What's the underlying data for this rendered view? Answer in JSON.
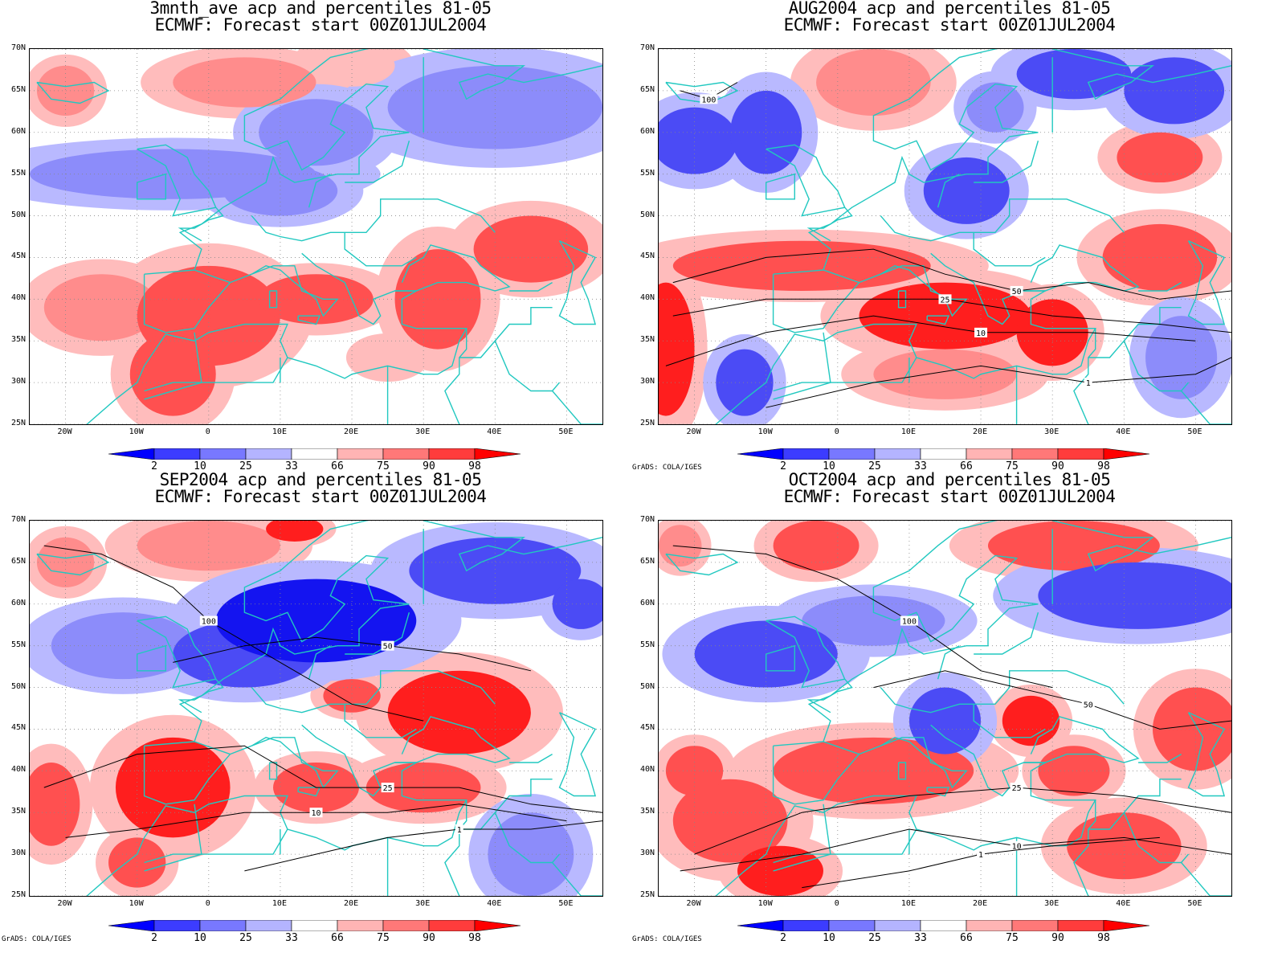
{
  "panels": [
    {
      "title1": "3mnth_ave acp and percentiles 81-05",
      "title2": "ECMWF: Forecast start 00Z01JUL2004",
      "credit": "",
      "blobs": [
        {
          "lon": -20,
          "lat": 65,
          "rx": 4,
          "ry": 3,
          "level": 75
        },
        {
          "lon": 5,
          "lat": 66,
          "rx": 10,
          "ry": 3,
          "level": 75
        },
        {
          "lon": 20,
          "lat": 68,
          "rx": 6,
          "ry": 2.5,
          "level": 66
        },
        {
          "lon": 40,
          "lat": 63,
          "rx": 15,
          "ry": 5,
          "level": 25
        },
        {
          "lon": 15,
          "lat": 60,
          "rx": 8,
          "ry": 4,
          "level": 25
        },
        {
          "lon": -5,
          "lat": 55,
          "rx": 20,
          "ry": 3,
          "level": 25
        },
        {
          "lon": 10,
          "lat": 53,
          "rx": 8,
          "ry": 3,
          "level": 25
        },
        {
          "lon": -15,
          "lat": 39,
          "rx": 8,
          "ry": 4,
          "level": 75
        },
        {
          "lon": 0,
          "lat": 38,
          "rx": 10,
          "ry": 6,
          "level": 90
        },
        {
          "lon": -5,
          "lat": 31,
          "rx": 6,
          "ry": 5,
          "level": 90
        },
        {
          "lon": 15,
          "lat": 40,
          "rx": 8,
          "ry": 3,
          "level": 90
        },
        {
          "lon": 32,
          "lat": 40,
          "rx": 6,
          "ry": 6,
          "level": 90
        },
        {
          "lon": 45,
          "lat": 46,
          "rx": 8,
          "ry": 4,
          "level": 90
        },
        {
          "lon": 25,
          "lat": 33,
          "rx": 4,
          "ry": 2,
          "level": 66
        }
      ],
      "contours": []
    },
    {
      "title1": "AUG2004 acp and percentiles 81-05",
      "title2": "ECMWF: Forecast start 00Z01JUL2004",
      "credit": "GrADS: COLA/IGES",
      "blobs": [
        {
          "lon": -20,
          "lat": 59,
          "rx": 6,
          "ry": 4,
          "level": 10
        },
        {
          "lon": -10,
          "lat": 60,
          "rx": 5,
          "ry": 5,
          "level": 10
        },
        {
          "lon": 33,
          "lat": 67,
          "rx": 8,
          "ry": 3,
          "level": 10
        },
        {
          "lon": 47,
          "lat": 65,
          "rx": 7,
          "ry": 4,
          "level": 10
        },
        {
          "lon": 22,
          "lat": 63,
          "rx": 4,
          "ry": 3,
          "level": 25
        },
        {
          "lon": 18,
          "lat": 53,
          "rx": 6,
          "ry": 4,
          "level": 10
        },
        {
          "lon": 5,
          "lat": 66,
          "rx": 8,
          "ry": 4,
          "level": 75
        },
        {
          "lon": 45,
          "lat": 57,
          "rx": 6,
          "ry": 3,
          "level": 90
        },
        {
          "lon": -5,
          "lat": 44,
          "rx": 18,
          "ry": 3,
          "level": 90
        },
        {
          "lon": 15,
          "lat": 38,
          "rx": 12,
          "ry": 4,
          "level": 98
        },
        {
          "lon": -24,
          "lat": 34,
          "rx": 4,
          "ry": 8,
          "level": 98
        },
        {
          "lon": 30,
          "lat": 36,
          "rx": 5,
          "ry": 4,
          "level": 98
        },
        {
          "lon": 15,
          "lat": 31,
          "rx": 10,
          "ry": 3,
          "level": 75
        },
        {
          "lon": -13,
          "lat": 30,
          "rx": 4,
          "ry": 4,
          "level": 10
        },
        {
          "lon": 48,
          "lat": 33,
          "rx": 5,
          "ry": 5,
          "level": 25
        },
        {
          "lon": 45,
          "lat": 45,
          "rx": 8,
          "ry": 4,
          "level": 90
        }
      ],
      "contours": [
        {
          "label": "100",
          "points": [
            [
              -22,
              65
            ],
            [
              -18,
              64
            ],
            [
              -14,
              66
            ]
          ]
        },
        {
          "label": "50",
          "points": [
            [
              -23,
              42
            ],
            [
              -10,
              45
            ],
            [
              5,
              46
            ],
            [
              15,
              43
            ],
            [
              25,
              41
            ],
            [
              35,
              42
            ],
            [
              45,
              40
            ],
            [
              55,
              41
            ]
          ]
        },
        {
          "label": "25",
          "points": [
            [
              -23,
              38
            ],
            [
              -10,
              40
            ],
            [
              5,
              40
            ],
            [
              15,
              40
            ],
            [
              30,
              38
            ],
            [
              45,
              37
            ],
            [
              55,
              36
            ]
          ]
        },
        {
          "label": "10",
          "points": [
            [
              -24,
              32
            ],
            [
              -10,
              36
            ],
            [
              5,
              38
            ],
            [
              20,
              36
            ],
            [
              35,
              36
            ],
            [
              50,
              35
            ]
          ]
        },
        {
          "label": "1",
          "points": [
            [
              -10,
              27
            ],
            [
              5,
              30
            ],
            [
              20,
              32
            ],
            [
              35,
              30
            ],
            [
              50,
              31
            ],
            [
              55,
              33
            ]
          ]
        }
      ]
    },
    {
      "title1": "SEP2004 acp and percentiles 81-05",
      "title2": "ECMWF: Forecast start 00Z01JUL2004",
      "credit": "GrADS: COLA/IGES",
      "blobs": [
        {
          "lon": 0,
          "lat": 67,
          "rx": 10,
          "ry": 3,
          "level": 75
        },
        {
          "lon": 12,
          "lat": 69,
          "rx": 4,
          "ry": 1.5,
          "level": 98
        },
        {
          "lon": -20,
          "lat": 65,
          "rx": 4,
          "ry": 3,
          "level": 75
        },
        {
          "lon": 15,
          "lat": 58,
          "rx": 14,
          "ry": 5,
          "level": 2
        },
        {
          "lon": 5,
          "lat": 54,
          "rx": 10,
          "ry": 4,
          "level": 10
        },
        {
          "lon": -12,
          "lat": 55,
          "rx": 10,
          "ry": 4,
          "level": 25
        },
        {
          "lon": 40,
          "lat": 64,
          "rx": 12,
          "ry": 4,
          "level": 10
        },
        {
          "lon": 52,
          "lat": 60,
          "rx": 4,
          "ry": 3,
          "level": 10
        },
        {
          "lon": 35,
          "lat": 47,
          "rx": 10,
          "ry": 5,
          "level": 98
        },
        {
          "lon": 20,
          "lat": 49,
          "rx": 4,
          "ry": 2,
          "level": 90
        },
        {
          "lon": -5,
          "lat": 38,
          "rx": 8,
          "ry": 6,
          "level": 98
        },
        {
          "lon": -22,
          "lat": 36,
          "rx": 4,
          "ry": 5,
          "level": 90
        },
        {
          "lon": 15,
          "lat": 38,
          "rx": 6,
          "ry": 3,
          "level": 90
        },
        {
          "lon": 30,
          "lat": 38,
          "rx": 8,
          "ry": 3,
          "level": 90
        },
        {
          "lon": -10,
          "lat": 29,
          "rx": 4,
          "ry": 3,
          "level": 90
        },
        {
          "lon": 45,
          "lat": 30,
          "rx": 6,
          "ry": 5,
          "level": 25
        }
      ],
      "contours": [
        {
          "label": "100",
          "points": [
            [
              -23,
              67
            ],
            [
              -15,
              66
            ],
            [
              -5,
              62
            ],
            [
              0,
              58
            ],
            [
              10,
              53
            ],
            [
              20,
              48
            ],
            [
              30,
              46
            ]
          ]
        },
        {
          "label": "50",
          "points": [
            [
              -5,
              53
            ],
            [
              5,
              55
            ],
            [
              15,
              56
            ],
            [
              25,
              55
            ],
            [
              35,
              54
            ],
            [
              45,
              52
            ]
          ]
        },
        {
          "label": "25",
          "points": [
            [
              -23,
              38
            ],
            [
              -10,
              42
            ],
            [
              5,
              43
            ],
            [
              15,
              38
            ],
            [
              25,
              38
            ],
            [
              35,
              38
            ],
            [
              45,
              36
            ],
            [
              55,
              35
            ]
          ]
        },
        {
          "label": "10",
          "points": [
            [
              -20,
              32
            ],
            [
              -10,
              33
            ],
            [
              5,
              35
            ],
            [
              15,
              35
            ],
            [
              25,
              35
            ],
            [
              35,
              36
            ],
            [
              50,
              34
            ]
          ]
        },
        {
          "label": "1",
          "points": [
            [
              5,
              28
            ],
            [
              15,
              30
            ],
            [
              25,
              32
            ],
            [
              35,
              33
            ],
            [
              45,
              33
            ],
            [
              55,
              34
            ]
          ]
        }
      ]
    },
    {
      "title1": "OCT2004 acp and percentiles 81-05",
      "title2": "ECMWF: Forecast start 00Z01JUL2004",
      "credit": "GrADS: COLA/IGES",
      "blobs": [
        {
          "lon": -3,
          "lat": 67,
          "rx": 6,
          "ry": 3,
          "level": 90
        },
        {
          "lon": 33,
          "lat": 67,
          "rx": 12,
          "ry": 3,
          "level": 90
        },
        {
          "lon": -22,
          "lat": 67,
          "rx": 3,
          "ry": 2.5,
          "level": 75
        },
        {
          "lon": -10,
          "lat": 54,
          "rx": 10,
          "ry": 4,
          "level": 10
        },
        {
          "lon": 5,
          "lat": 58,
          "rx": 10,
          "ry": 3,
          "level": 25
        },
        {
          "lon": 42,
          "lat": 61,
          "rx": 14,
          "ry": 4,
          "level": 10
        },
        {
          "lon": 15,
          "lat": 46,
          "rx": 5,
          "ry": 4,
          "level": 10
        },
        {
          "lon": 27,
          "lat": 46,
          "rx": 4,
          "ry": 3,
          "level": 98
        },
        {
          "lon": 5,
          "lat": 40,
          "rx": 14,
          "ry": 4,
          "level": 90
        },
        {
          "lon": -15,
          "lat": 34,
          "rx": 8,
          "ry": 5,
          "level": 90
        },
        {
          "lon": -8,
          "lat": 28,
          "rx": 6,
          "ry": 3,
          "level": 98
        },
        {
          "lon": 40,
          "lat": 31,
          "rx": 8,
          "ry": 4,
          "level": 90
        },
        {
          "lon": 50,
          "lat": 45,
          "rx": 6,
          "ry": 5,
          "level": 90
        },
        {
          "lon": -20,
          "lat": 40,
          "rx": 4,
          "ry": 3,
          "level": 90
        },
        {
          "lon": 33,
          "lat": 40,
          "rx": 5,
          "ry": 3,
          "level": 90
        }
      ],
      "contours": [
        {
          "label": "100",
          "points": [
            [
              -23,
              67
            ],
            [
              -10,
              66
            ],
            [
              0,
              63
            ],
            [
              10,
              58
            ],
            [
              20,
              52
            ],
            [
              30,
              50
            ]
          ]
        },
        {
          "label": "50",
          "points": [
            [
              5,
              50
            ],
            [
              15,
              52
            ],
            [
              25,
              50
            ],
            [
              35,
              48
            ],
            [
              45,
              45
            ],
            [
              55,
              46
            ]
          ]
        },
        {
          "label": "25",
          "points": [
            [
              -20,
              30
            ],
            [
              -5,
              35
            ],
            [
              10,
              37
            ],
            [
              25,
              38
            ],
            [
              40,
              37
            ],
            [
              55,
              35
            ]
          ]
        },
        {
          "label": "10",
          "points": [
            [
              -22,
              28
            ],
            [
              -5,
              30
            ],
            [
              10,
              33
            ],
            [
              25,
              31
            ],
            [
              40,
              32
            ],
            [
              55,
              30
            ]
          ]
        },
        {
          "label": "1",
          "points": [
            [
              -5,
              26
            ],
            [
              10,
              28
            ],
            [
              20,
              30
            ],
            [
              30,
              31
            ],
            [
              45,
              32
            ]
          ]
        }
      ]
    }
  ],
  "axes": {
    "lat_labels": [
      "70N",
      "65N",
      "60N",
      "55N",
      "50N",
      "45N",
      "40N",
      "35N",
      "30N",
      "25N"
    ],
    "lat_values": [
      70,
      65,
      60,
      55,
      50,
      45,
      40,
      35,
      30,
      25
    ],
    "lon_labels": [
      "20W",
      "10W",
      "0",
      "10E",
      "20E",
      "30E",
      "40E",
      "50E"
    ],
    "lon_values": [
      -20,
      -10,
      0,
      10,
      20,
      30,
      40,
      50
    ],
    "lon_range": [
      -25,
      55
    ],
    "lat_range": [
      25,
      70
    ]
  },
  "colorbar": {
    "labels": [
      "2",
      "10",
      "25",
      "33",
      "66",
      "75",
      "90",
      "98"
    ],
    "colors": [
      "#0000ff",
      "#3c3cff",
      "#7878ff",
      "#b4b4ff",
      "#ffffff",
      "#ffb4b4",
      "#ff7878",
      "#ff3c3c",
      "#ff0000"
    ]
  },
  "level_colors": {
    "2": "#1414f0",
    "10": "#4b4bf5",
    "25": "#8c8cfa",
    "33": "#b9b9ff",
    "66": "#ffbcbc",
    "75": "#ff8c8c",
    "90": "#ff5050",
    "98": "#ff1e1e"
  },
  "coast_color": "#21c8c0",
  "contour_color": "#000000"
}
